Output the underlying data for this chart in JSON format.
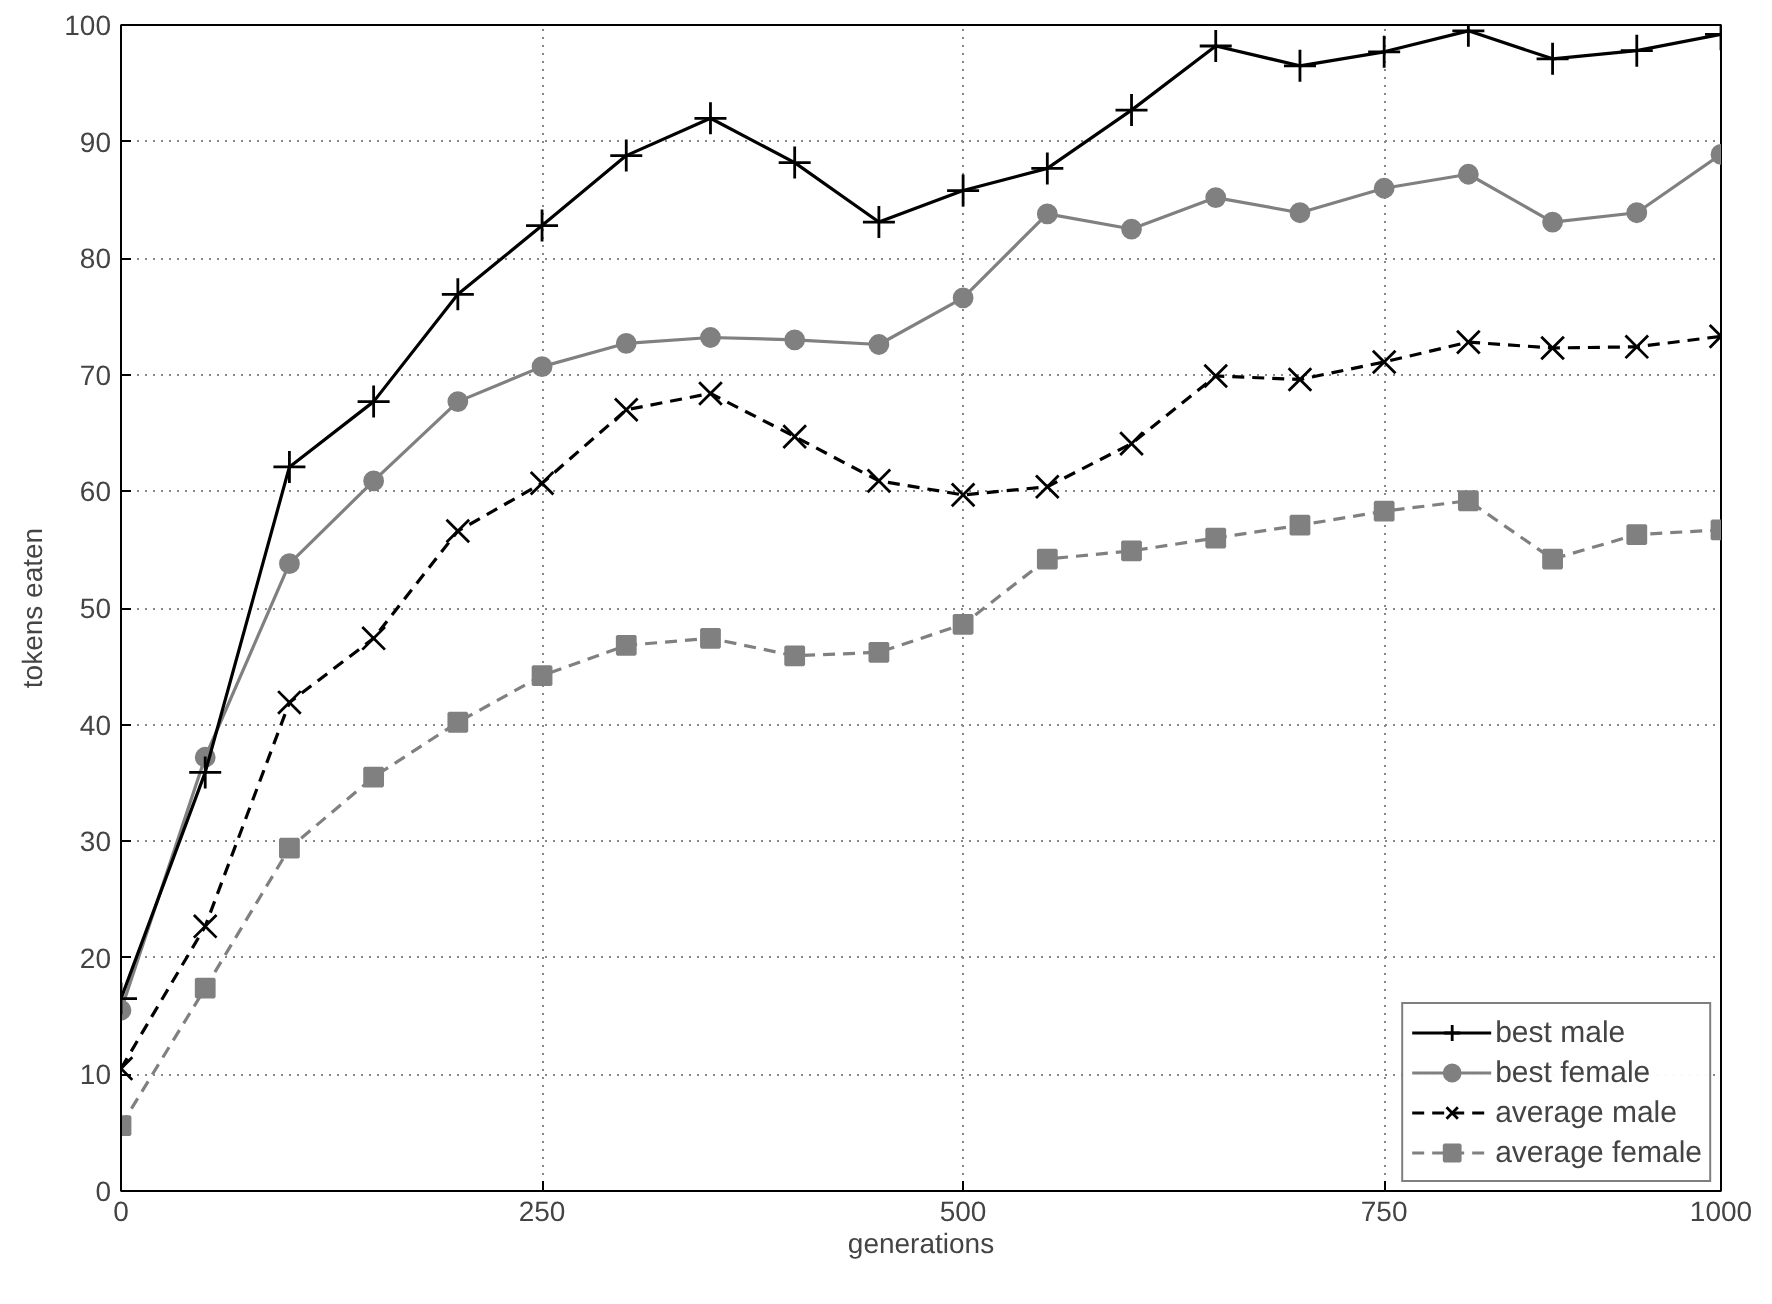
{
  "chart_data": {
    "type": "line",
    "xlabel": "generations",
    "ylabel": "tokens eaten",
    "categories": [
      "0",
      null,
      null,
      null,
      null,
      "250",
      null,
      null,
      null,
      null,
      "500",
      null,
      null,
      null,
      null,
      "750",
      null,
      null,
      null,
      "1000"
    ],
    "ylim": [
      0,
      100
    ],
    "yticks": [
      0,
      10,
      20,
      30,
      40,
      50,
      60,
      70,
      80,
      90,
      100
    ],
    "grid": true,
    "legend": "bottom right",
    "series": [
      {
        "name": "best male",
        "color": "#000000",
        "marker": "cross",
        "line_style": "solid",
        "values": [
          16.5,
          35.9,
          62.1,
          67.7,
          76.9,
          82.8,
          88.8,
          92.0,
          88.2,
          83.1,
          85.8,
          87.7,
          92.7,
          98.2,
          96.5,
          97.7,
          99.5,
          97.1,
          97.8,
          99.2
        ]
      },
      {
        "name": "best female",
        "color": "#808080",
        "marker": "circle",
        "line_style": "solid",
        "values": [
          15.5,
          37.2,
          53.8,
          60.9,
          67.7,
          70.7,
          72.7,
          73.2,
          73.0,
          72.6,
          76.6,
          83.8,
          82.5,
          85.2,
          83.9,
          86.0,
          87.2,
          83.1,
          83.9,
          88.9
        ]
      },
      {
        "name": "average male",
        "color": "#000000",
        "marker": "x",
        "line_style": "dashed",
        "values": [
          10.5,
          22.7,
          41.9,
          47.4,
          56.6,
          60.7,
          67.0,
          68.4,
          64.7,
          60.9,
          59.7,
          60.4,
          64.1,
          69.9,
          69.6,
          71.1,
          72.8,
          72.3,
          72.4,
          73.3
        ]
      },
      {
        "name": "average female",
        "color": "#808080",
        "marker": "square",
        "line_style": "dashed",
        "values": [
          5.6,
          17.4,
          29.4,
          35.5,
          40.2,
          44.2,
          46.8,
          47.4,
          45.9,
          46.2,
          48.6,
          54.2,
          54.9,
          56.0,
          57.1,
          58.3,
          59.2,
          54.2,
          56.3,
          56.7
        ]
      }
    ]
  }
}
